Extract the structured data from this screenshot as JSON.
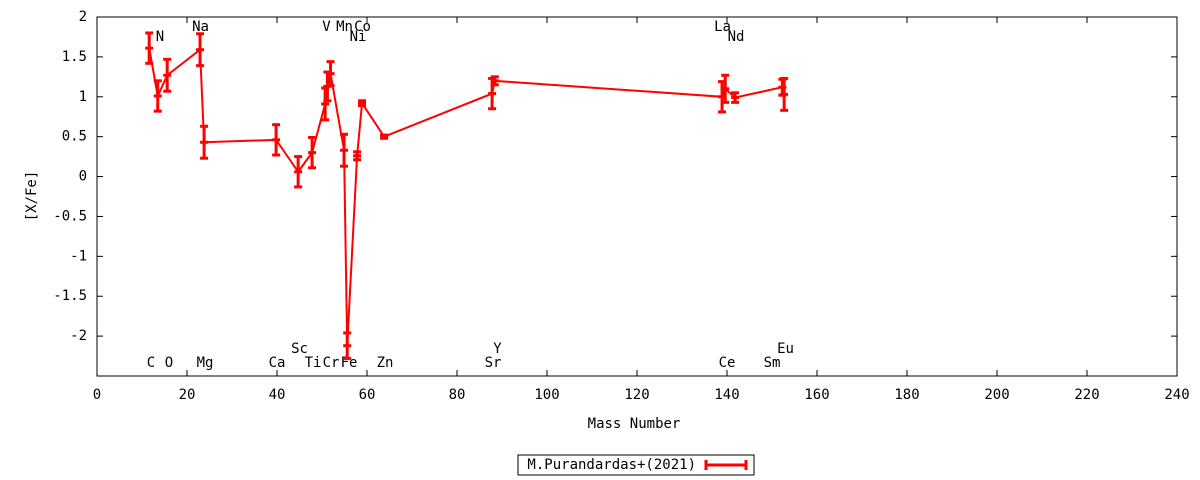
{
  "chart_data": {
    "type": "errorbar-line",
    "x_label": "Mass Number",
    "y_label": "[X/Fe]",
    "x": [
      11.6,
      13.5,
      15.6,
      22.9,
      23.8,
      39.8,
      44.7,
      47.8,
      50.7,
      51.2,
      51.9,
      54.9,
      55.6,
      57.8,
      58.9,
      63.8,
      87.8,
      88.4,
      138.9,
      139.6,
      141.8,
      152.3,
      152.7
    ],
    "series": [
      {
        "name": "M.Purandardas+(2021)",
        "color": "#ff0000",
        "values": [
          1.61,
          1.01,
          1.27,
          1.59,
          0.43,
          0.46,
          0.06,
          0.3,
          0.91,
          1.13,
          1.29,
          0.33,
          -2.12,
          0.26,
          0.92,
          0.5,
          1.04,
          1.2,
          1.0,
          1.1,
          0.99,
          1.12,
          1.03
        ],
        "errors": [
          0.19,
          0.19,
          0.2,
          0.2,
          0.2,
          0.19,
          0.19,
          0.19,
          0.2,
          0.18,
          0.15,
          0.2,
          0.16,
          0.05,
          0.03,
          0.02,
          0.19,
          0.05,
          0.19,
          0.17,
          0.06,
          0.1,
          0.2
        ]
      }
    ],
    "annotations": [
      {
        "text": "C",
        "x": 12
      },
      {
        "text": "N",
        "x": 14
      },
      {
        "text": "O",
        "x": 16
      },
      {
        "text": "Na",
        "x": 23
      },
      {
        "text": "Mg",
        "x": 24
      },
      {
        "text": "Ca",
        "x": 40
      },
      {
        "text": "Sc",
        "x": 45
      },
      {
        "text": "Ti",
        "x": 48
      },
      {
        "text": "V",
        "x": 51
      },
      {
        "text": "Cr",
        "x": 52
      },
      {
        "text": "Mn",
        "x": 55
      },
      {
        "text": "Fe",
        "x": 56
      },
      {
        "text": "Co",
        "x": 59
      },
      {
        "text": "Ni",
        "x": 58
      },
      {
        "text": "Zn",
        "x": 64
      },
      {
        "text": "Sr",
        "x": 88
      },
      {
        "text": "Y",
        "x": 89
      },
      {
        "text": "La",
        "x": 139
      },
      {
        "text": "Ce",
        "x": 140
      },
      {
        "text": "Nd",
        "x": 142
      },
      {
        "text": "Sm",
        "x": 150
      },
      {
        "text": "Eu",
        "x": 153
      }
    ],
    "xlim": [
      0,
      240
    ],
    "xticks": [
      0,
      20,
      40,
      60,
      80,
      100,
      120,
      140,
      160,
      180,
      200,
      220,
      240
    ],
    "ylim": [
      -2.5,
      2
    ],
    "yticks": [
      -2,
      -1.5,
      -1,
      -0.5,
      0,
      0.5,
      1,
      1.5,
      2
    ],
    "grid": false,
    "legend": "bottom"
  }
}
